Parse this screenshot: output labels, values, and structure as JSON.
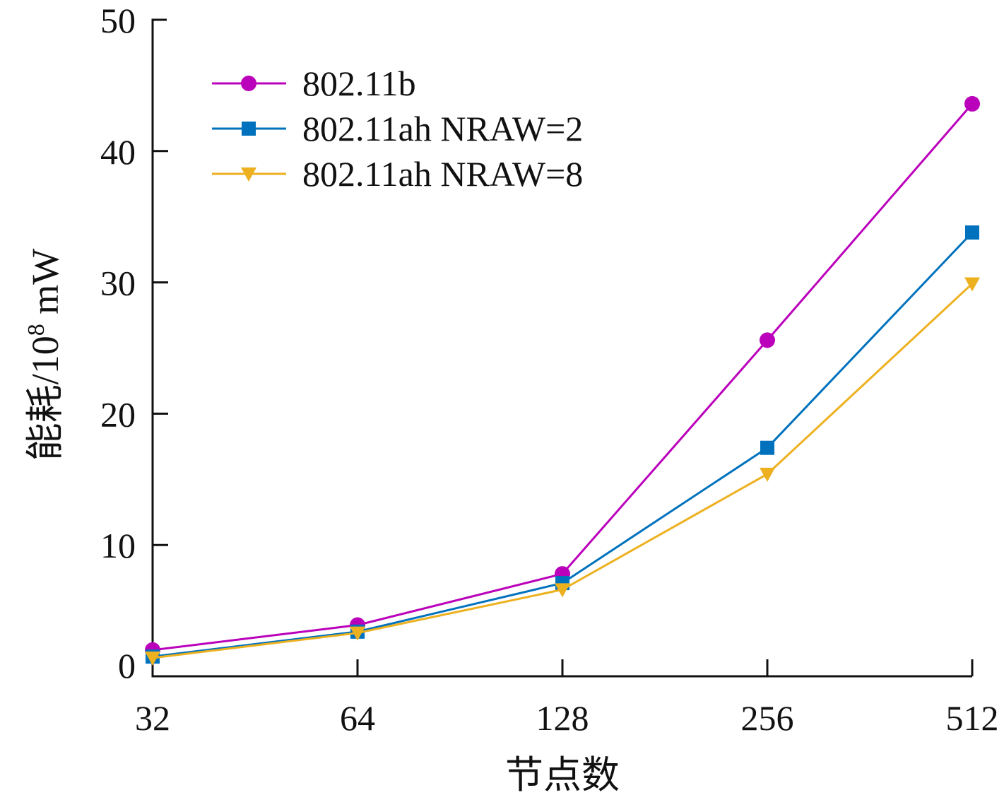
{
  "chart_data": {
    "type": "line",
    "title": "",
    "xlabel": "节点数",
    "ylabel": "能耗/10",
    "ylabel_exp": "8",
    "ylabel_unit": " mW",
    "categories": [
      "32",
      "64",
      "128",
      "256",
      "512"
    ],
    "yticks": [
      "0",
      "10",
      "20",
      "30",
      "40",
      "50"
    ],
    "ylim": [
      0,
      50
    ],
    "grid": false,
    "legend_position": "top-left",
    "series": [
      {
        "name": "802.11b",
        "color": "#BB00BB",
        "marker": "circle",
        "values": [
          2.0,
          3.9,
          7.8,
          25.6,
          43.6
        ]
      },
      {
        "name": "802.11ah NRAW=2",
        "color": "#0072BD",
        "marker": "square",
        "values": [
          1.5,
          3.4,
          7.1,
          17.4,
          33.8
        ]
      },
      {
        "name": "802.11ah NRAW=8",
        "color": "#EDB120",
        "marker": "triangle-down",
        "values": [
          1.4,
          3.3,
          6.6,
          15.4,
          29.9
        ]
      }
    ]
  }
}
